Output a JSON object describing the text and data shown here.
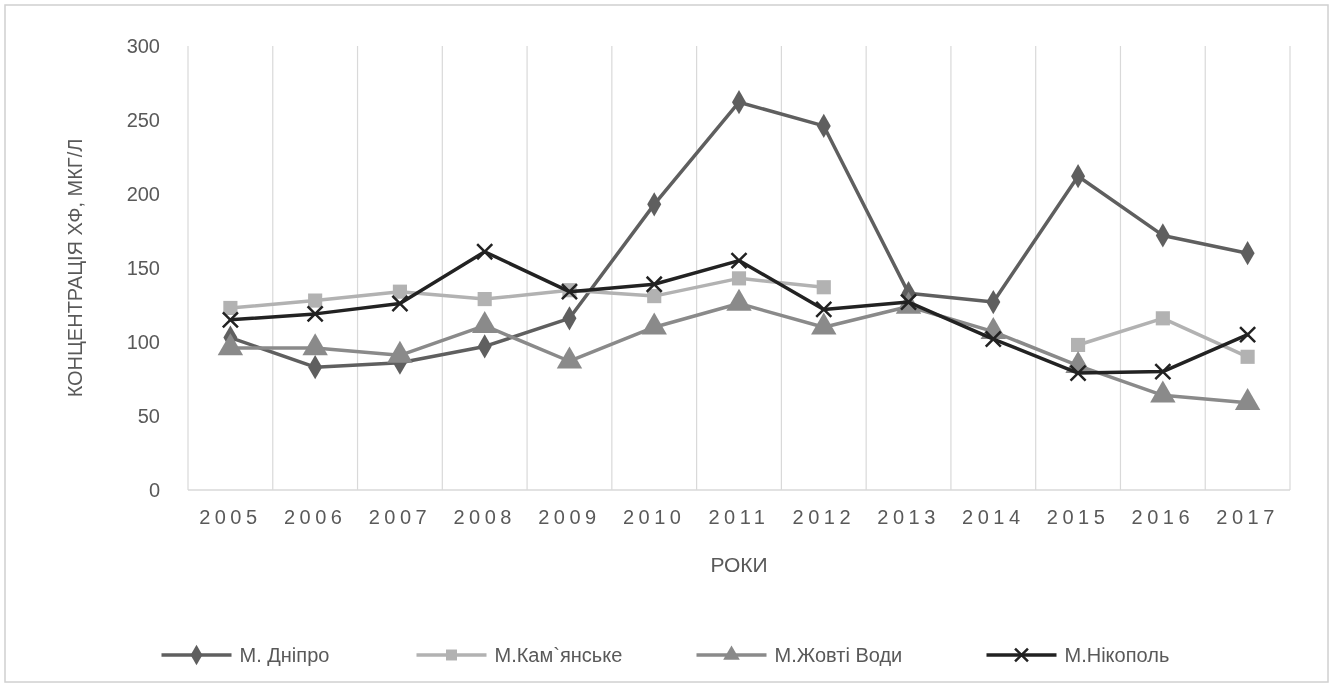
{
  "chart_data": {
    "type": "line",
    "xlabel": "РОКИ",
    "ylabel": "КОНЦЕНТРАЦІЯ ХФ, МКГ/Л",
    "categories": [
      "2005",
      "2006",
      "2007",
      "2008",
      "2009",
      "2010",
      "2011",
      "2012",
      "2013",
      "2014",
      "2015",
      "2016",
      "2017"
    ],
    "ylim": [
      0,
      300
    ],
    "yticks": [
      0,
      50,
      100,
      150,
      200,
      250,
      300
    ],
    "grid": "x",
    "legend": "bottom",
    "series": [
      {
        "name": "М. Дніпро",
        "color": "#5f5f5f",
        "marker": "diamond",
        "values": [
          103,
          83,
          86,
          97,
          116,
          193,
          262,
          246,
          133,
          127,
          212,
          172,
          160
        ]
      },
      {
        "name": "М.Кам`янське",
        "color": "#b2b2b2",
        "marker": "square",
        "values": [
          123,
          128,
          134,
          129,
          135,
          131,
          143,
          137,
          null,
          null,
          98,
          116,
          90
        ]
      },
      {
        "name": "М.Жовті Води",
        "color": "#8a8a8a",
        "marker": "triangle",
        "values": [
          96,
          96,
          91,
          111,
          87,
          110,
          126,
          110,
          124,
          107,
          84,
          64,
          59
        ]
      },
      {
        "name": "М.Нікополь",
        "color": "#222222",
        "marker": "cross",
        "values": [
          115,
          119,
          126,
          161,
          134,
          139,
          155,
          122,
          127,
          102,
          79,
          80,
          105
        ]
      }
    ]
  }
}
